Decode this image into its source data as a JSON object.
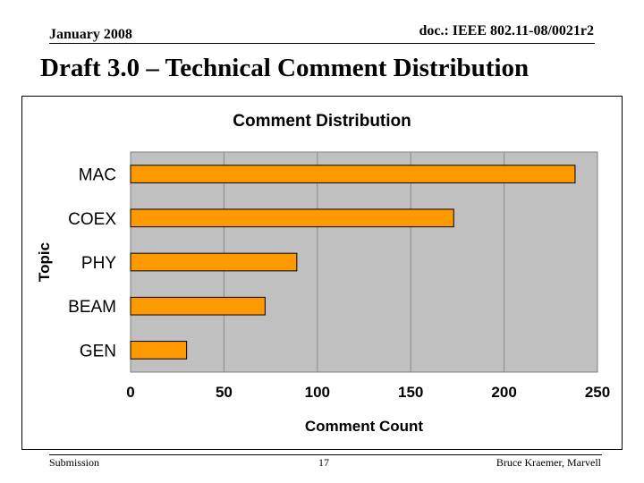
{
  "header": {
    "date": "January 2008",
    "doc": "doc.: IEEE 802.11-08/0021r2"
  },
  "slide_title": "Draft 3.0 – Technical Comment Distribution",
  "footer": {
    "left": "Submission",
    "page": "17",
    "right": "Bruce Kraemer, Marvell"
  },
  "colors": {
    "bar_fill": "#ff9900",
    "plot_bg": "#c0c0c0"
  },
  "chart_data": {
    "type": "bar",
    "orientation": "horizontal",
    "title": "Comment Distribution",
    "xlabel": "Comment Count",
    "ylabel": "Topic",
    "categories": [
      "MAC",
      "COEX",
      "PHY",
      "BEAM",
      "GEN"
    ],
    "values": [
      238,
      173,
      89,
      72,
      30
    ],
    "xlim": [
      0,
      250
    ],
    "xticks": [
      0,
      50,
      100,
      150,
      200,
      250
    ],
    "grid": true,
    "legend": "none"
  }
}
